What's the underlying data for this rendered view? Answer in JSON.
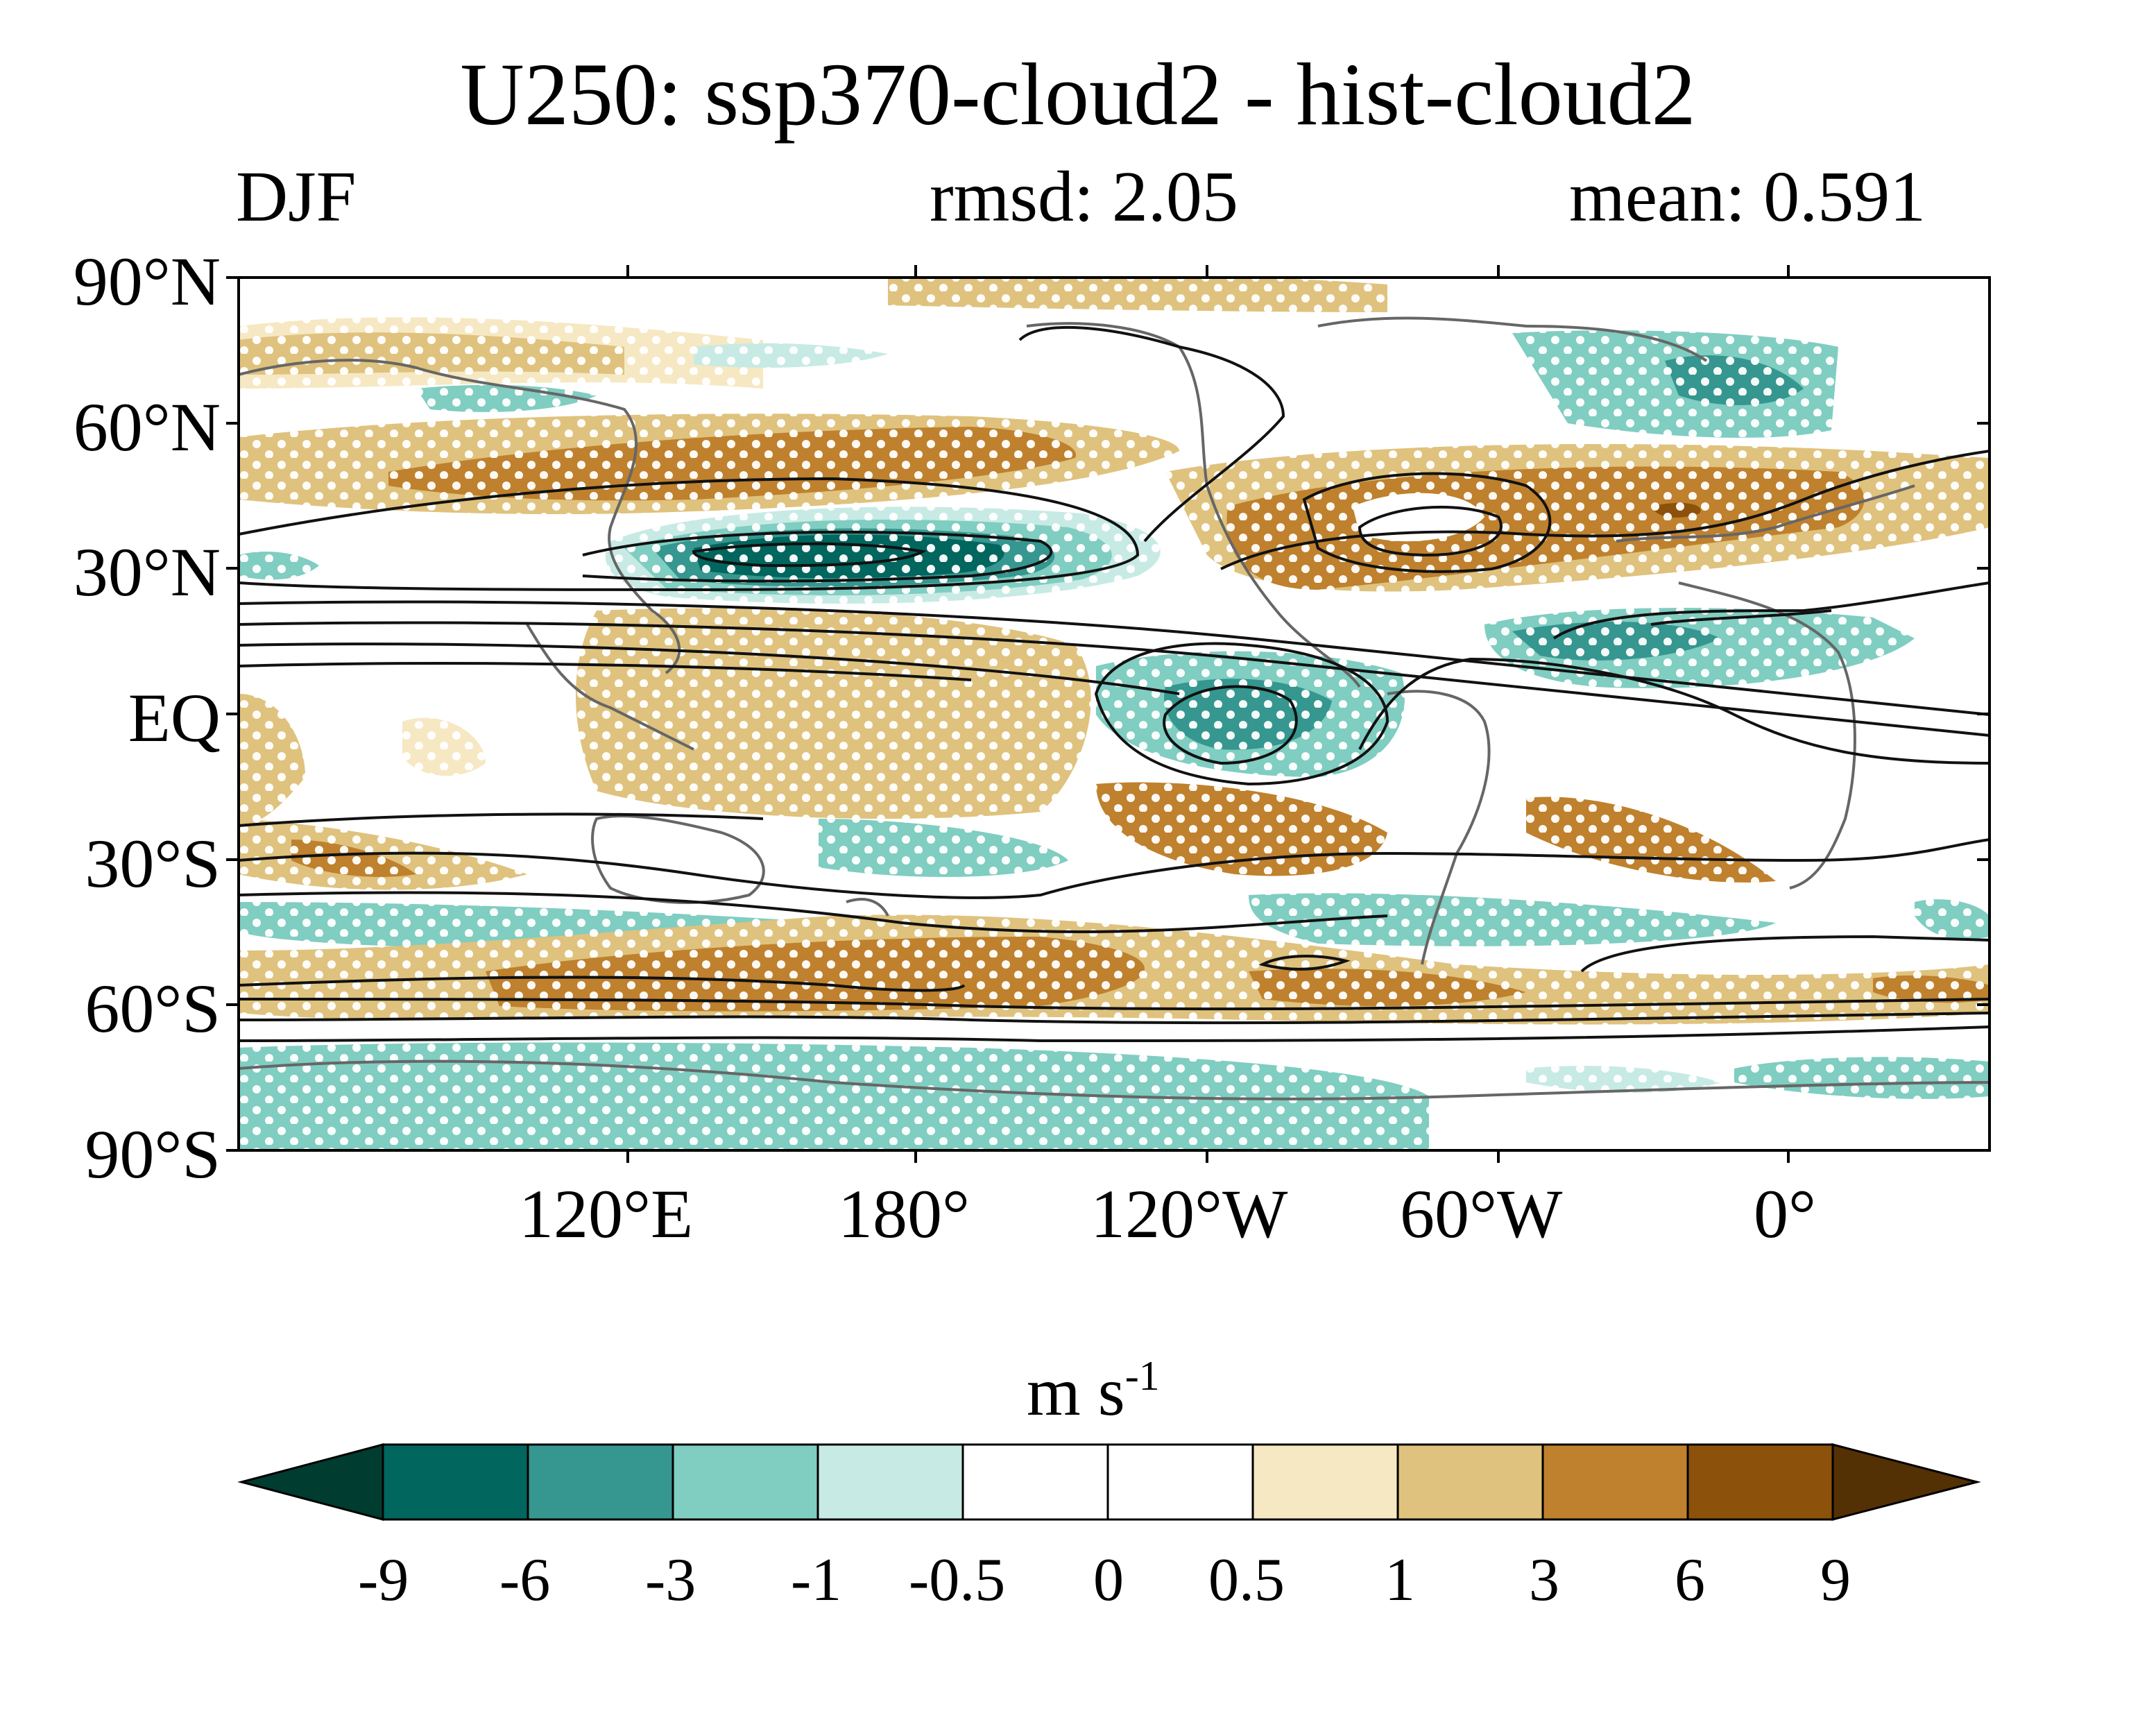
{
  "title": "U250: ssp370-cloud2 - hist-cloud2",
  "season": "DJF",
  "rmsd_label": "rmsd: 2.05",
  "mean_label": "mean: 0.591",
  "lat_labels": [
    "90°N",
    "60°N",
    "30°N",
    "EQ",
    "30°S",
    "60°S",
    "90°S"
  ],
  "lon_labels": [
    "120°E",
    "180°",
    "120°W",
    "60°W",
    "0°"
  ],
  "colorbar": {
    "units": "m s",
    "units_exp": "-1",
    "ticks": [
      "-9",
      "-6",
      "-3",
      "-1",
      "-0.5",
      "0",
      "0.5",
      "1",
      "3",
      "6",
      "9"
    ],
    "colors": [
      "#003c30",
      "#01665e",
      "#35978f",
      "#80cdc1",
      "#c7eae5",
      "#ffffff",
      "#ffffff",
      "#f6e8c3",
      "#dfc27d",
      "#bf812d",
      "#8c510a",
      "#543005"
    ]
  },
  "map": {
    "projection": "cylindrical equidistant",
    "center_longitude": "~150°E",
    "stippling": "white dots",
    "contours": "black lines"
  }
}
